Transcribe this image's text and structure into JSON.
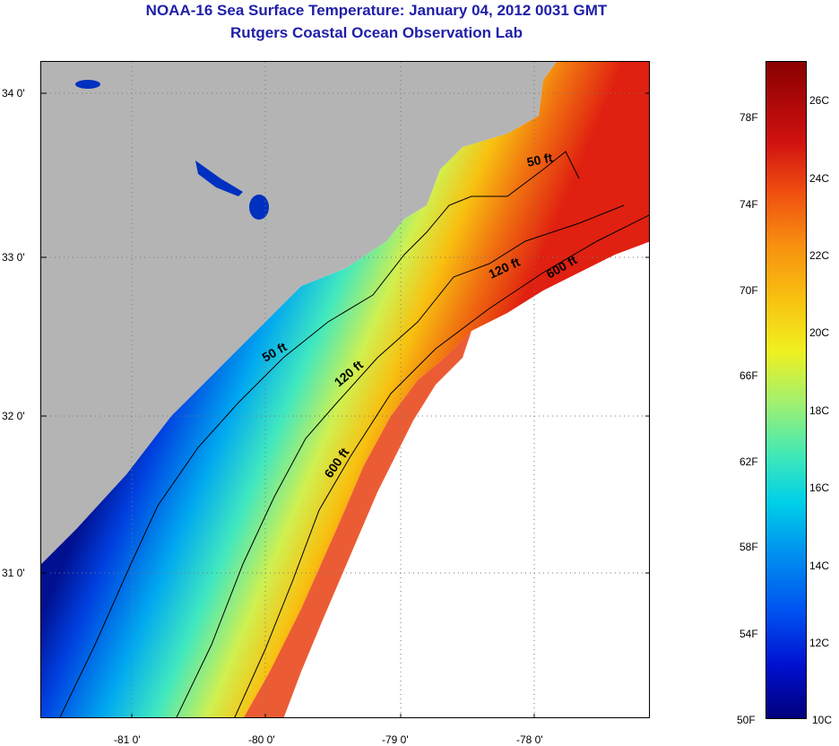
{
  "header": {
    "title": "NOAA-16 Sea Surface Temperature:  January 04, 2012 0031 GMT",
    "subtitle": "Rutgers Coastal Ocean Observation Lab"
  },
  "map": {
    "lat_labels": [
      "34 0'",
      "33 0'",
      "32 0'",
      "31 0'"
    ],
    "lon_labels": [
      "-81 0'",
      "-80 0'",
      "-79 0'",
      "-78 0'"
    ],
    "isobaths": [
      "50 ft",
      "120 ft",
      "600 ft"
    ],
    "colors": {
      "land": "#b4b4b4",
      "no_data": "#ffffff"
    }
  },
  "colorbar": {
    "fahrenheit": [
      "78F",
      "74F",
      "70F",
      "66F",
      "62F",
      "58F",
      "54F",
      "50F"
    ],
    "celsius": [
      "26C",
      "24C",
      "22C",
      "20C",
      "18C",
      "16C",
      "14C",
      "12C",
      "10C"
    ],
    "min_color": "#00007a",
    "max_color": "#8a0000"
  }
}
